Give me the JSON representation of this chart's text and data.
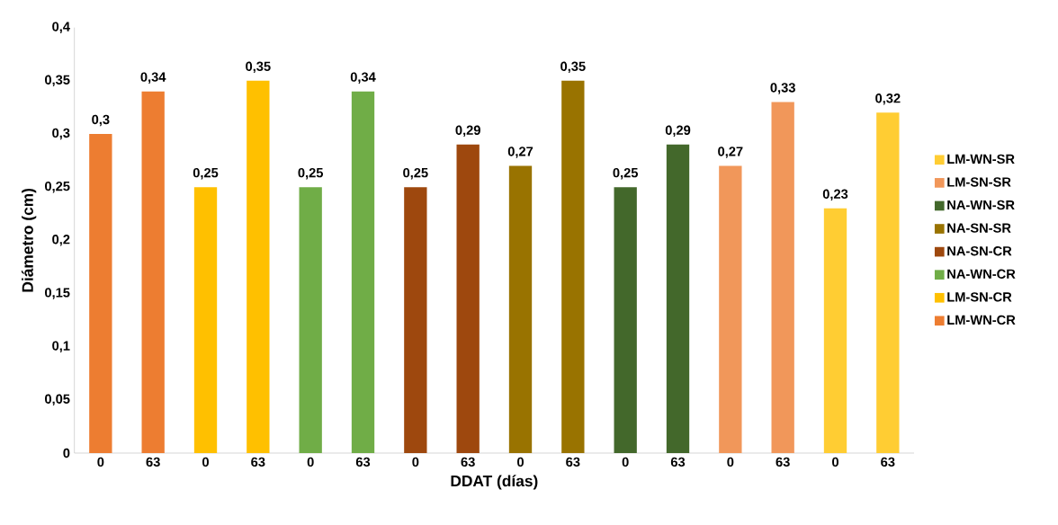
{
  "chart_data": {
    "type": "bar",
    "xlabel": "DDAT (días)",
    "ylabel": "Diámetro (cm)",
    "categories": [
      "0",
      "63",
      "0",
      "63",
      "0",
      "63",
      "0",
      "63",
      "0",
      "63",
      "0",
      "63",
      "0",
      "63",
      "0",
      "63"
    ],
    "series": [
      {
        "name": "LM-WN-CR",
        "color": "#ed7d31",
        "values": [
          0.3,
          0.34,
          null,
          null,
          null,
          null,
          null,
          null,
          null,
          null,
          null,
          null,
          null,
          null,
          null,
          null
        ],
        "value_labels": [
          "0,3",
          "0,34",
          null,
          null,
          null,
          null,
          null,
          null,
          null,
          null,
          null,
          null,
          null,
          null,
          null,
          null
        ]
      },
      {
        "name": "LM-SN-CR",
        "color": "#ffc000",
        "values": [
          null,
          null,
          0.25,
          0.35,
          null,
          null,
          null,
          null,
          null,
          null,
          null,
          null,
          null,
          null,
          null,
          null
        ],
        "value_labels": [
          null,
          null,
          "0,25",
          "0,35",
          null,
          null,
          null,
          null,
          null,
          null,
          null,
          null,
          null,
          null,
          null,
          null
        ]
      },
      {
        "name": "NA-WN-CR",
        "color": "#70ad47",
        "values": [
          null,
          null,
          null,
          null,
          0.25,
          0.34,
          null,
          null,
          null,
          null,
          null,
          null,
          null,
          null,
          null,
          null
        ],
        "value_labels": [
          null,
          null,
          null,
          null,
          "0,25",
          "0,34",
          null,
          null,
          null,
          null,
          null,
          null,
          null,
          null,
          null,
          null
        ]
      },
      {
        "name": "NA-SN-CR",
        "color": "#9e480e",
        "values": [
          null,
          null,
          null,
          null,
          null,
          null,
          0.25,
          0.29,
          null,
          null,
          null,
          null,
          null,
          null,
          null,
          null
        ],
        "value_labels": [
          null,
          null,
          null,
          null,
          null,
          null,
          "0,25",
          "0,29",
          null,
          null,
          null,
          null,
          null,
          null,
          null,
          null
        ]
      },
      {
        "name": "NA-SN-SR",
        "color": "#997300",
        "values": [
          null,
          null,
          null,
          null,
          null,
          null,
          null,
          null,
          0.27,
          0.35,
          null,
          null,
          null,
          null,
          null,
          null
        ],
        "value_labels": [
          null,
          null,
          null,
          null,
          null,
          null,
          null,
          null,
          "0,27",
          "0,35",
          null,
          null,
          null,
          null,
          null,
          null
        ]
      },
      {
        "name": "NA-WN-SR",
        "color": "#43682b",
        "values": [
          null,
          null,
          null,
          null,
          null,
          null,
          null,
          null,
          null,
          null,
          0.25,
          0.29,
          null,
          null,
          null,
          null
        ],
        "value_labels": [
          null,
          null,
          null,
          null,
          null,
          null,
          null,
          null,
          null,
          null,
          "0,25",
          "0,29",
          null,
          null,
          null,
          null
        ]
      },
      {
        "name": "LM-SN-SR",
        "color": "#f1975a",
        "values": [
          null,
          null,
          null,
          null,
          null,
          null,
          null,
          null,
          null,
          null,
          null,
          null,
          0.27,
          0.33,
          null,
          null
        ],
        "value_labels": [
          null,
          null,
          null,
          null,
          null,
          null,
          null,
          null,
          null,
          null,
          null,
          null,
          "0,27",
          "0,33",
          null,
          null
        ]
      },
      {
        "name": "LM-WN-SR",
        "color": "#ffcd33",
        "values": [
          null,
          null,
          null,
          null,
          null,
          null,
          null,
          null,
          null,
          null,
          null,
          null,
          null,
          null,
          0.23,
          0.32
        ],
        "value_labels": [
          null,
          null,
          null,
          null,
          null,
          null,
          null,
          null,
          null,
          null,
          null,
          null,
          null,
          null,
          "0,23",
          "0,32"
        ]
      }
    ],
    "ylim": [
      0,
      0.4
    ],
    "yticks": [
      0,
      {
        "value": 0.05,
        "label": "0,05"
      },
      {
        "value": 0.1,
        "label": "0,1"
      },
      {
        "value": 0.15,
        "label": "0,15"
      },
      {
        "value": 0.2,
        "label": "0,2"
      },
      {
        "value": 0.25,
        "label": "0,25"
      },
      {
        "value": 0.3,
        "label": "0,3"
      },
      {
        "value": 0.35,
        "label": "0,35"
      },
      {
        "value": 0.4,
        "label": "0,4"
      }
    ],
    "grid": false,
    "legend": "right"
  }
}
